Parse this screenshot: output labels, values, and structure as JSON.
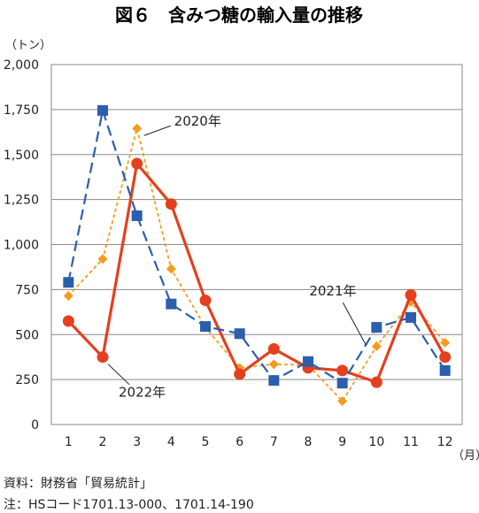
{
  "chart_data": {
    "type": "line",
    "title": "図６　含みつ糖の輸入量の推移",
    "ylabel": "（トン）",
    "xlabel": "（月）",
    "categories": [
      "1",
      "2",
      "3",
      "4",
      "5",
      "6",
      "7",
      "8",
      "9",
      "10",
      "11",
      "12"
    ],
    "ylim": [
      0,
      2000
    ],
    "yticks": [
      0,
      250,
      500,
      750,
      1000,
      1250,
      1500,
      1750,
      2000
    ],
    "ytick_labels": [
      "0",
      "250",
      "500",
      "750",
      "1,000",
      "1,250",
      "1,500",
      "1,750",
      "2,000"
    ],
    "grid": "horizontal",
    "series": [
      {
        "name": "2020年",
        "color": "#f39c1f",
        "style": "dotted",
        "marker": "diamond",
        "values": [
          715,
          920,
          1645,
          865,
          540,
          315,
          335,
          330,
          130,
          435,
          680,
          455
        ]
      },
      {
        "name": "2021年",
        "color": "#2b5fad",
        "style": "dashed",
        "marker": "square",
        "values": [
          790,
          1745,
          1160,
          670,
          545,
          505,
          245,
          350,
          230,
          540,
          595,
          300
        ]
      },
      {
        "name": "2022年",
        "color": "#e4401e",
        "style": "solid",
        "marker": "circle",
        "values": [
          575,
          375,
          1450,
          1225,
          690,
          280,
          420,
          315,
          300,
          235,
          720,
          375
        ]
      }
    ]
  },
  "source_note": "資料：財務省「貿易統計」",
  "footnote": "注：HSコード1701.13-000、1701.14-190"
}
